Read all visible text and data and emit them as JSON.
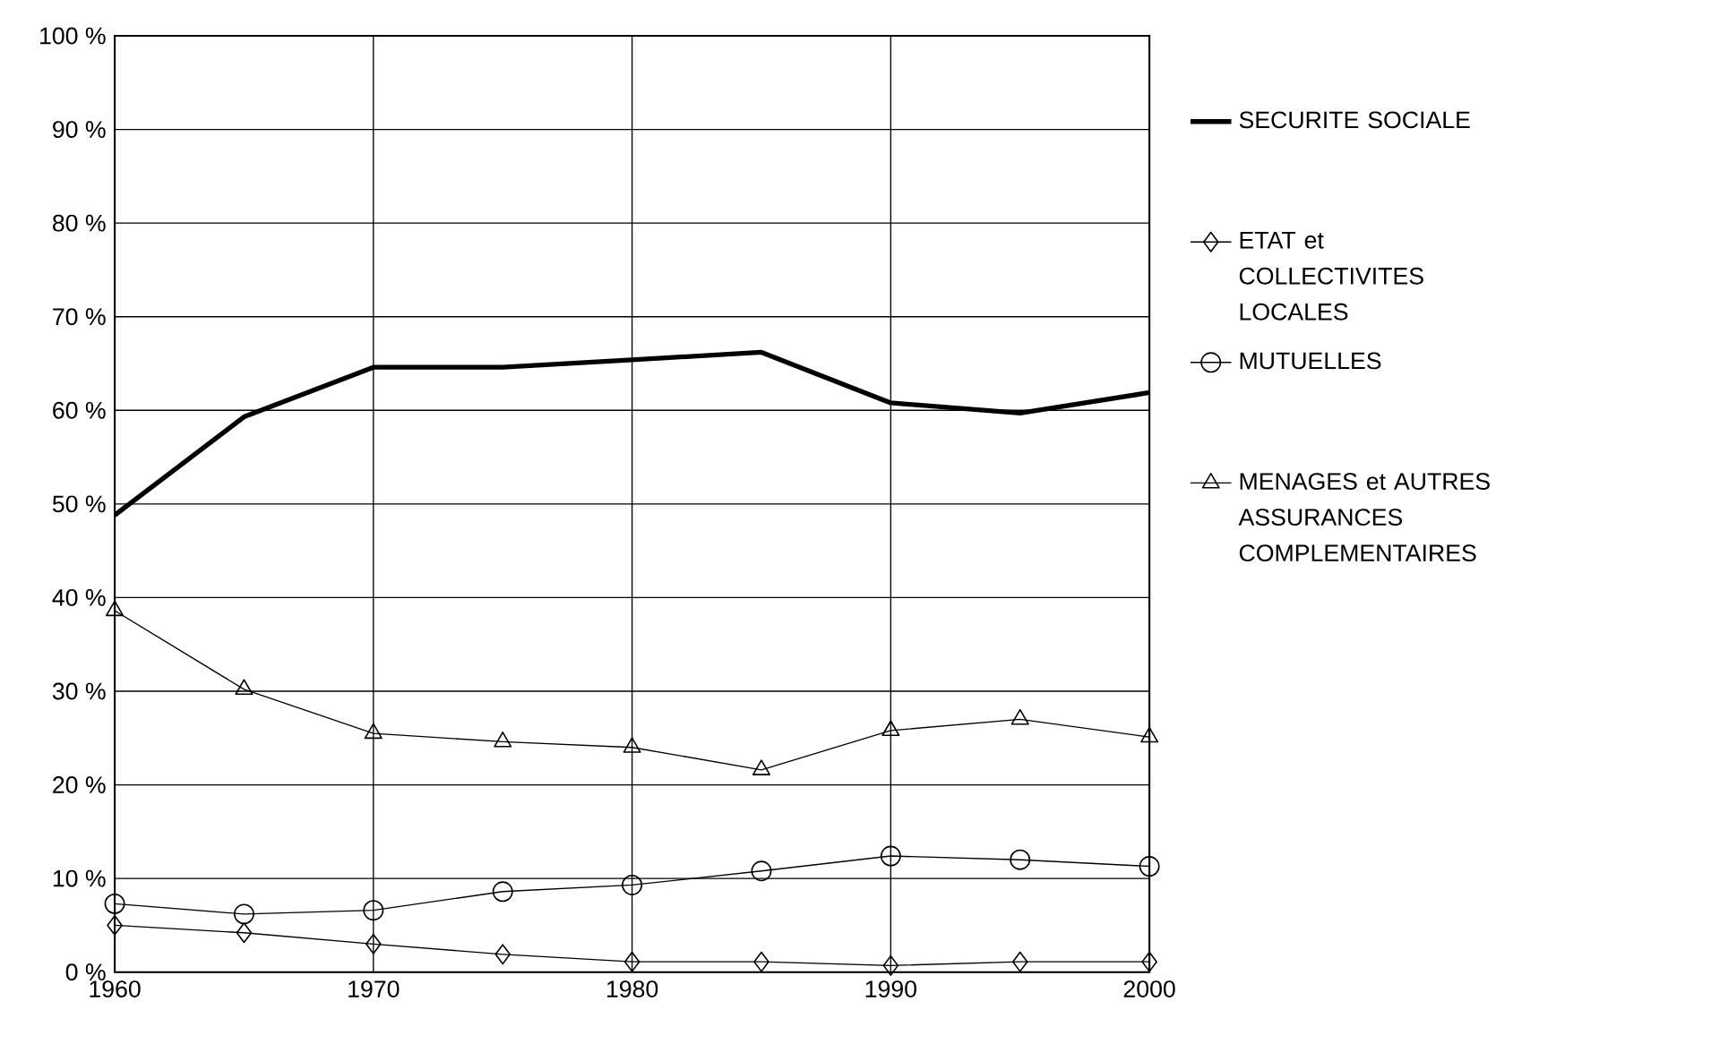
{
  "chart_data": {
    "type": "line",
    "x": [
      1960,
      1965,
      1970,
      1975,
      1980,
      1985,
      1990,
      1995,
      2000
    ],
    "series": [
      {
        "name": "SECURITE SOCIALE",
        "color": "#000000",
        "marker": "none",
        "values": [
          48.8,
          59.3,
          64.6,
          64.6,
          65.4,
          66.2,
          60.8,
          59.7,
          61.9
        ]
      },
      {
        "name": "ETAT et COLLECTIVITES LOCALES",
        "color": "#000000",
        "marker": "diamond",
        "values": [
          5.0,
          4.2,
          3.0,
          1.9,
          1.1,
          1.1,
          0.7,
          1.1,
          1.1
        ]
      },
      {
        "name": "MUTUELLES",
        "color": "#000000",
        "marker": "circle",
        "values": [
          7.3,
          6.2,
          6.6,
          8.6,
          9.3,
          10.8,
          12.4,
          12.0,
          11.3
        ]
      },
      {
        "name": "MENAGES et AUTRES ASSURANCES COMPLEMENTAIRES",
        "color": "#000000",
        "marker": "triangle",
        "values": [
          38.6,
          30.2,
          25.5,
          24.6,
          24.0,
          21.6,
          25.8,
          27.0,
          25.1
        ]
      }
    ],
    "xlim": [
      1960,
      2000
    ],
    "xticks": [
      1960,
      1970,
      1980,
      1990,
      2000
    ],
    "ylim": [
      0,
      100
    ],
    "yticks": [
      {
        "value": 0,
        "label": "0 %"
      },
      {
        "value": 10,
        "label": "10 %"
      },
      {
        "value": 20,
        "label": "20 %"
      },
      {
        "value": 30,
        "label": "30 %"
      },
      {
        "value": 40,
        "label": "40 %"
      },
      {
        "value": 50,
        "label": "50 %"
      },
      {
        "value": 60,
        "label": "60 %"
      },
      {
        "value": 70,
        "label": "70 %"
      },
      {
        "value": 80,
        "label": "80 %"
      },
      {
        "value": 90,
        "label": "90 %"
      },
      {
        "value": 100,
        "label": "100 %"
      }
    ],
    "grid": true,
    "legend": "right"
  }
}
